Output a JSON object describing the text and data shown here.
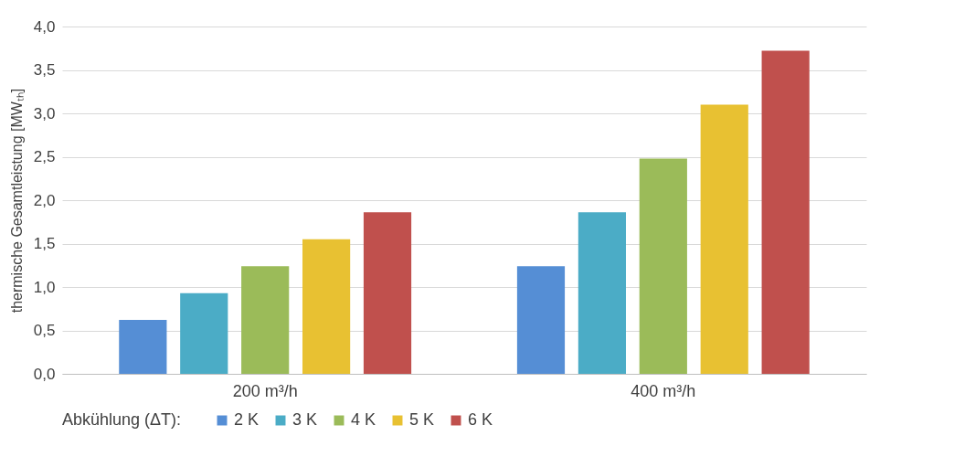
{
  "chart_data": {
    "type": "bar",
    "ylabel": "thermische Gesamtleistung [MWₜₕ]",
    "legend_title": "Abkühlung  (ΔT):",
    "categories": [
      "200 m³/h",
      "400 m³/h"
    ],
    "series": [
      {
        "name": "2 K",
        "color": "#558ed5",
        "values": [
          0.62,
          1.24
        ]
      },
      {
        "name": "3 K",
        "color": "#4bacc6",
        "values": [
          0.93,
          1.86
        ]
      },
      {
        "name": "4 K",
        "color": "#9bbb59",
        "values": [
          1.24,
          2.48
        ]
      },
      {
        "name": "5 K",
        "color": "#e8c132",
        "values": [
          1.55,
          3.1
        ]
      },
      {
        "name": "6 K",
        "color": "#c0504d",
        "values": [
          1.86,
          3.72
        ]
      }
    ],
    "ylim": [
      0,
      4
    ],
    "yticks": [
      {
        "value": 0,
        "label": "0,0"
      },
      {
        "value": 0.5,
        "label": "0,5"
      },
      {
        "value": 1,
        "label": "1,0"
      },
      {
        "value": 1.5,
        "label": "1,5"
      },
      {
        "value": 2,
        "label": "2,0"
      },
      {
        "value": 2.5,
        "label": "2,5"
      },
      {
        "value": 3,
        "label": "3,0"
      },
      {
        "value": 3.5,
        "label": "3,5"
      },
      {
        "value": 4,
        "label": "4,0"
      }
    ],
    "grid": "y",
    "legend": "bottom"
  }
}
